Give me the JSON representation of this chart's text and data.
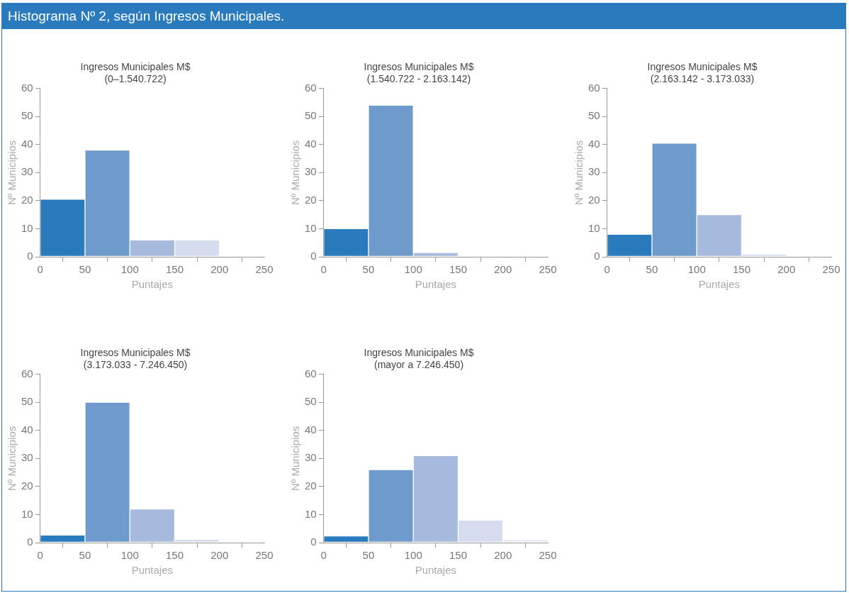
{
  "chart_data": [
    {
      "type": "other",
      "title": "Histograma Nº 2, según Ingresos Municipales."
    },
    {
      "type": "histogram",
      "title": "Ingresos Municipales M$",
      "subtitle": "(0–1.540.722)",
      "xlabel": "Puntajes",
      "ylabel": "Nº Municipios",
      "bins": [
        0,
        50,
        100,
        150,
        200
      ],
      "values": [
        20.5,
        38,
        6,
        6
      ],
      "colors": [
        "#2a7bbd",
        "#6f9acc",
        "#a6badd",
        "#d5dcef"
      ],
      "xlim": [
        0,
        250
      ],
      "xticks": [
        0,
        50,
        100,
        150,
        200,
        250
      ],
      "ylim": [
        0,
        60
      ],
      "yticks": [
        0,
        10,
        20,
        30,
        40,
        50,
        60
      ],
      "grid": false,
      "legend": false
    },
    {
      "type": "histogram",
      "title": "Ingresos Municipales M$",
      "subtitle": "(1.540.722 - 2.163.142)",
      "xlabel": "Puntajes",
      "ylabel": "Nº Municipios",
      "bins": [
        0,
        50,
        100,
        150
      ],
      "values": [
        10,
        54,
        1.5
      ],
      "colors": [
        "#2a7bbd",
        "#6f9acc",
        "#a6badd"
      ],
      "xlim": [
        0,
        250
      ],
      "xticks": [
        0,
        50,
        100,
        150,
        200,
        250
      ],
      "ylim": [
        0,
        60
      ],
      "yticks": [
        0,
        10,
        20,
        30,
        40,
        50,
        60
      ],
      "grid": false,
      "legend": false
    },
    {
      "type": "histogram",
      "title": "Ingresos Municipales M$",
      "subtitle": "(2.163.142 - 3.173.033)",
      "xlabel": "Puntajes",
      "ylabel": "Nº Municipios",
      "bins": [
        0,
        50,
        100,
        150,
        200
      ],
      "values": [
        8,
        40.5,
        15,
        1
      ],
      "colors": [
        "#2a7bbd",
        "#6f9acc",
        "#a6badd",
        "#d5dcef"
      ],
      "xlim": [
        0,
        250
      ],
      "xticks": [
        0,
        50,
        100,
        150,
        200,
        250
      ],
      "ylim": [
        0,
        60
      ],
      "yticks": [
        0,
        10,
        20,
        30,
        40,
        50,
        60
      ],
      "grid": false,
      "legend": false
    },
    {
      "type": "histogram",
      "title": "Ingresos Municipales M$",
      "subtitle": "(3.173.033 - 7.246.450)",
      "xlabel": "Puntajes",
      "ylabel": "Nº Municipios",
      "bins": [
        0,
        50,
        100,
        150,
        200
      ],
      "values": [
        2.7,
        50,
        12,
        1.2
      ],
      "colors": [
        "#2a7bbd",
        "#6f9acc",
        "#a6badd",
        "#d5dcef"
      ],
      "xlim": [
        0,
        250
      ],
      "xticks": [
        0,
        50,
        100,
        150,
        200,
        250
      ],
      "ylim": [
        0,
        60
      ],
      "yticks": [
        0,
        10,
        20,
        30,
        40,
        50,
        60
      ],
      "grid": false,
      "legend": false
    },
    {
      "type": "histogram",
      "title": "Ingresos Municipales M$",
      "subtitle": "(mayor a 7.246.450)",
      "xlabel": "Puntajes",
      "ylabel": "Nº Municipios",
      "bins": [
        0,
        50,
        100,
        150,
        200,
        250
      ],
      "values": [
        2.4,
        26,
        31,
        8,
        1.2
      ],
      "colors": [
        "#2a7bbd",
        "#6f9acc",
        "#a6badd",
        "#d5dcef",
        "#e6ebf5"
      ],
      "xlim": [
        0,
        250
      ],
      "xticks": [
        0,
        50,
        100,
        150,
        200,
        250
      ],
      "ylim": [
        0,
        60
      ],
      "yticks": [
        0,
        10,
        20,
        30,
        40,
        50,
        60
      ],
      "grid": false,
      "legend": false
    }
  ]
}
